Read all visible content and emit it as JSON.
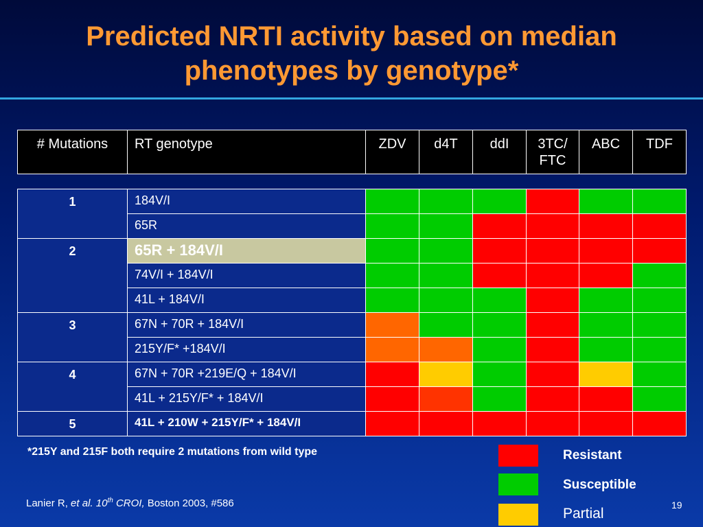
{
  "title": {
    "line1": "Predicted NRTI activity based on median",
    "line2": "phenotypes by genotype*"
  },
  "header": {
    "mutations": "# Mutations",
    "genotype": "RT genotype",
    "drugs": [
      "ZDV",
      "d4T",
      "ddI",
      "3TC/ FTC",
      "ABC",
      "TDF"
    ]
  },
  "colors": {
    "resistant": "#ff0000",
    "susceptible": "#00cc00",
    "partial": "#ffcc00",
    "intermediate_orange": "#ff6600",
    "intermediate_red_orange": "#ff3300"
  },
  "groups": [
    {
      "mutations": "1",
      "rows": [
        {
          "genotype": "184V/I",
          "style": "",
          "cells": [
            "susceptible",
            "susceptible",
            "susceptible",
            "resistant",
            "susceptible",
            "susceptible"
          ]
        },
        {
          "genotype": "65R",
          "style": "",
          "cells": [
            "susceptible",
            "susceptible",
            "resistant",
            "resistant",
            "resistant",
            "resistant"
          ]
        }
      ]
    },
    {
      "mutations": "2",
      "rows": [
        {
          "genotype": "65R + 184V/I",
          "style": "hl",
          "cells": [
            "susceptible",
            "susceptible",
            "resistant",
            "resistant",
            "resistant",
            "resistant"
          ]
        },
        {
          "genotype": "74V/I + 184V/I",
          "style": "",
          "cells": [
            "susceptible",
            "susceptible",
            "resistant",
            "resistant",
            "resistant",
            "susceptible"
          ]
        },
        {
          "genotype": "41L + 184V/I",
          "style": "",
          "cells": [
            "susceptible",
            "susceptible",
            "susceptible",
            "resistant",
            "susceptible",
            "susceptible"
          ]
        }
      ]
    },
    {
      "mutations": "3",
      "rows": [
        {
          "genotype": "67N + 70R + 184V/I",
          "style": "",
          "cells": [
            "intermediate_orange",
            "susceptible",
            "susceptible",
            "resistant",
            "susceptible",
            "susceptible"
          ]
        },
        {
          "genotype": "215Y/F* +184V/I",
          "style": "",
          "cells": [
            "intermediate_orange",
            "intermediate_orange",
            "susceptible",
            "resistant",
            "susceptible",
            "susceptible"
          ]
        }
      ]
    },
    {
      "mutations": "4",
      "rows": [
        {
          "genotype": "67N + 70R +219E/Q + 184V/I",
          "style": "",
          "cells": [
            "resistant",
            "partial",
            "susceptible",
            "resistant",
            "partial",
            "susceptible"
          ]
        },
        {
          "genotype": "41L + 215Y/F* + 184V/I",
          "style": "",
          "cells": [
            "resistant",
            "intermediate_red_orange",
            "susceptible",
            "resistant",
            "resistant",
            "susceptible"
          ]
        }
      ]
    },
    {
      "mutations": "5",
      "rows": [
        {
          "genotype": "41L + 210W + 215Y/F* + 184V/I",
          "style": "bold",
          "cells": [
            "resistant",
            "resistant",
            "resistant",
            "resistant",
            "resistant",
            "resistant"
          ]
        }
      ]
    }
  ],
  "footnote": "*215Y and 215F both require 2 mutations from wild type",
  "legend": [
    {
      "label": "Resistant",
      "color_key": "resistant",
      "bold": true
    },
    {
      "label": "Susceptible",
      "color_key": "susceptible",
      "bold": true
    },
    {
      "label": "Partial",
      "color_key": "partial",
      "bold": false
    }
  ],
  "citation": {
    "author": "Lanier R,",
    "etal": "et al.",
    "conf_num": "10",
    "conf_sup": "th",
    "conf_name": "CROI,",
    "rest": "Boston 2003, #586"
  },
  "page_number": "19"
}
